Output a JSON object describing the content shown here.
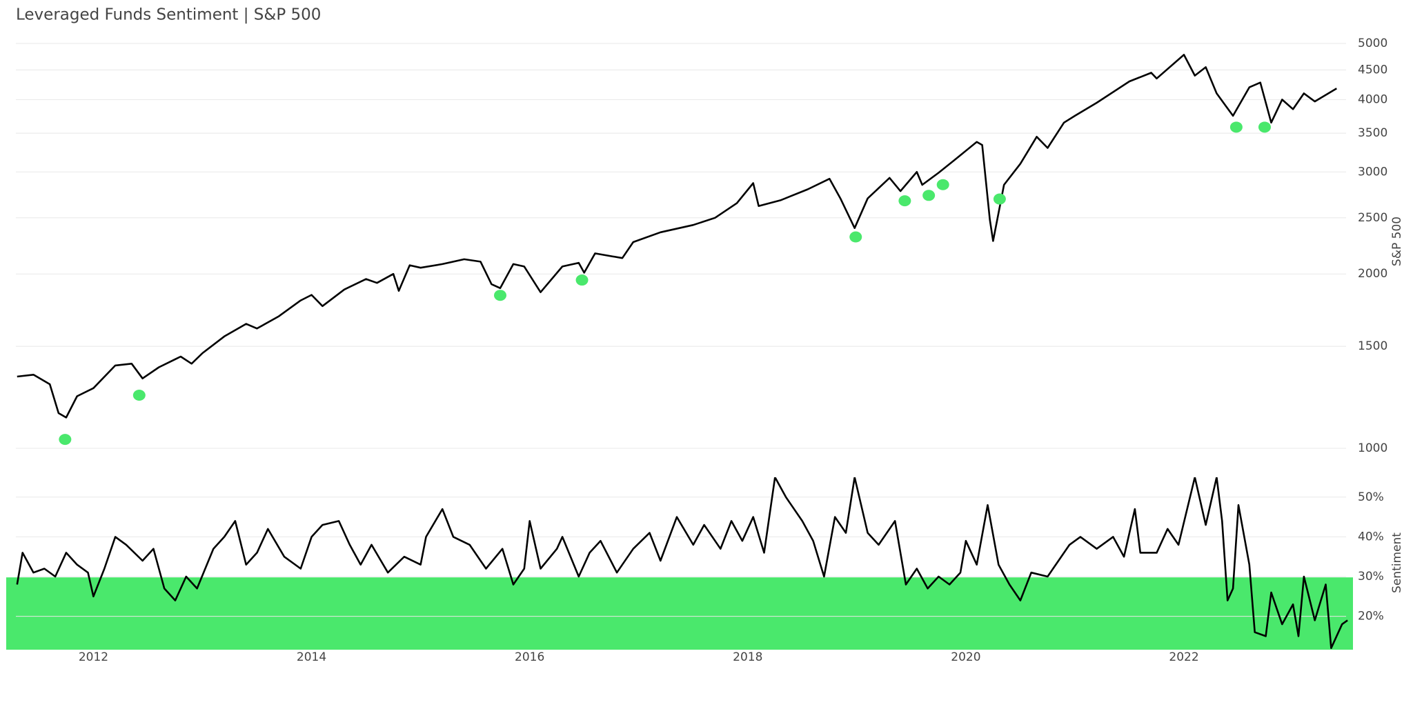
{
  "chart_data": [
    {
      "type": "line",
      "title": "Leveraged Funds Sentiment | S&P 500",
      "y_label": "S&P 500",
      "log_y": true,
      "grid": true,
      "xlim": [
        2011.2,
        2023.55
      ],
      "ylim": [
        1000,
        5000
      ],
      "yticks": [
        1000,
        1500,
        2000,
        2500,
        3000,
        3500,
        4000,
        4500,
        5000
      ],
      "color": "#000000",
      "x": [
        2011.3,
        2011.45,
        2011.6,
        2011.68,
        2011.75,
        2011.85,
        2012.0,
        2012.2,
        2012.35,
        2012.45,
        2012.6,
        2012.8,
        2012.9,
        2013.0,
        2013.2,
        2013.4,
        2013.5,
        2013.7,
        2013.9,
        2014.0,
        2014.1,
        2014.3,
        2014.5,
        2014.6,
        2014.75,
        2014.8,
        2014.9,
        2015.0,
        2015.2,
        2015.4,
        2015.55,
        2015.65,
        2015.73,
        2015.85,
        2015.95,
        2016.1,
        2016.3,
        2016.45,
        2016.5,
        2016.6,
        2016.85,
        2016.95,
        2017.2,
        2017.5,
        2017.7,
        2017.9,
        2018.05,
        2018.1,
        2018.3,
        2018.55,
        2018.75,
        2018.85,
        2018.98,
        2019.1,
        2019.3,
        2019.4,
        2019.55,
        2019.6,
        2019.75,
        2019.9,
        2020.1,
        2020.15,
        2020.22,
        2020.25,
        2020.35,
        2020.5,
        2020.65,
        2020.75,
        2020.9,
        2021.0,
        2021.2,
        2021.5,
        2021.7,
        2021.75,
        2022.0,
        2022.1,
        2022.2,
        2022.3,
        2022.45,
        2022.6,
        2022.7,
        2022.8,
        2022.9,
        2023.0,
        2023.1,
        2023.2,
        2023.4
      ],
      "values": [
        1330,
        1340,
        1290,
        1150,
        1130,
        1230,
        1270,
        1390,
        1400,
        1320,
        1380,
        1440,
        1400,
        1460,
        1560,
        1640,
        1610,
        1690,
        1800,
        1840,
        1760,
        1880,
        1960,
        1930,
        2000,
        1870,
        2070,
        2050,
        2080,
        2120,
        2100,
        1920,
        1890,
        2080,
        2060,
        1860,
        2060,
        2090,
        2010,
        2170,
        2130,
        2270,
        2360,
        2430,
        2500,
        2650,
        2870,
        2620,
        2680,
        2800,
        2920,
        2700,
        2400,
        2700,
        2930,
        2780,
        3000,
        2850,
        2990,
        3150,
        3380,
        3340,
        2480,
        2280,
        2850,
        3100,
        3450,
        3300,
        3650,
        3750,
        3950,
        4300,
        4450,
        4350,
        4780,
        4400,
        4550,
        4100,
        3750,
        4200,
        4280,
        3650,
        4000,
        3850,
        4100,
        3970,
        4180
      ],
      "markers": {
        "color": "#4ae86c",
        "x": [
          2011.74,
          2012.42,
          2015.73,
          2016.48,
          2018.99,
          2019.44,
          2019.66,
          2019.79,
          2020.31,
          2022.48,
          2022.74
        ],
        "values": [
          1036,
          1235,
          1837,
          1952,
          2317,
          2675,
          2733,
          2852,
          2694,
          3585,
          3585
        ]
      }
    },
    {
      "type": "line",
      "y_label": "Sentiment",
      "grid": true,
      "xlim": [
        2011.2,
        2023.55
      ],
      "ylim": [
        11.6,
        55
      ],
      "xticks": [
        2012,
        2014,
        2016,
        2018,
        2020,
        2022
      ],
      "yticks": [
        {
          "value": 20,
          "label": "20%"
        },
        {
          "value": 30,
          "label": "30%"
        },
        {
          "value": 40,
          "label": "40%"
        },
        {
          "value": 50,
          "label": "50%"
        }
      ],
      "band": {
        "from": 11.6,
        "to": 29.8,
        "color": "#4ae86c"
      },
      "color": "#000000",
      "x": [
        2011.3,
        2011.35,
        2011.45,
        2011.55,
        2011.65,
        2011.75,
        2011.85,
        2011.95,
        2012.0,
        2012.1,
        2012.2,
        2012.3,
        2012.45,
        2012.55,
        2012.65,
        2012.75,
        2012.85,
        2012.95,
        2013.1,
        2013.2,
        2013.3,
        2013.4,
        2013.5,
        2013.6,
        2013.75,
        2013.9,
        2014.0,
        2014.1,
        2014.25,
        2014.35,
        2014.45,
        2014.55,
        2014.7,
        2014.85,
        2015.0,
        2015.05,
        2015.2,
        2015.3,
        2015.45,
        2015.6,
        2015.75,
        2015.85,
        2015.95,
        2016.0,
        2016.1,
        2016.25,
        2016.3,
        2016.45,
        2016.55,
        2016.65,
        2016.8,
        2016.95,
        2017.1,
        2017.2,
        2017.35,
        2017.5,
        2017.6,
        2017.75,
        2017.85,
        2017.95,
        2018.05,
        2018.15,
        2018.25,
        2018.35,
        2018.5,
        2018.6,
        2018.7,
        2018.8,
        2018.9,
        2018.98,
        2019.1,
        2019.2,
        2019.35,
        2019.45,
        2019.55,
        2019.65,
        2019.75,
        2019.85,
        2019.95,
        2020.0,
        2020.1,
        2020.2,
        2020.3,
        2020.4,
        2020.5,
        2020.6,
        2020.75,
        2020.85,
        2020.95,
        2021.05,
        2021.2,
        2021.35,
        2021.45,
        2021.55,
        2021.6,
        2021.75,
        2021.85,
        2021.95,
        2022.1,
        2022.2,
        2022.3,
        2022.35,
        2022.4,
        2022.45,
        2022.5,
        2022.6,
        2022.65,
        2022.75,
        2022.8,
        2022.9,
        2023.0,
        2023.05,
        2023.1,
        2023.2,
        2023.3,
        2023.35,
        2023.45,
        2023.5
      ],
      "values": [
        28,
        36,
        31,
        32,
        30,
        36,
        33,
        31,
        25,
        32,
        40,
        38,
        34,
        37,
        27,
        24,
        30,
        27,
        37,
        40,
        44,
        33,
        36,
        42,
        35,
        32,
        40,
        43,
        44,
        38,
        33,
        38,
        31,
        35,
        33,
        40,
        47,
        40,
        38,
        32,
        37,
        28,
        32,
        44,
        32,
        37,
        40,
        30,
        36,
        39,
        31,
        37,
        41,
        34,
        45,
        38,
        43,
        37,
        44,
        39,
        45,
        36,
        55,
        50,
        44,
        39,
        30,
        45,
        41,
        55,
        41,
        38,
        44,
        28,
        32,
        27,
        30,
        28,
        31,
        39,
        33,
        48,
        33,
        28,
        24,
        31,
        30,
        34,
        38,
        40,
        37,
        40,
        35,
        47,
        36,
        36,
        42,
        38,
        55,
        43,
        55,
        44,
        24,
        27,
        48,
        33,
        16,
        15,
        26,
        18,
        23,
        15,
        30,
        19,
        28,
        12,
        18,
        19
      ]
    }
  ]
}
